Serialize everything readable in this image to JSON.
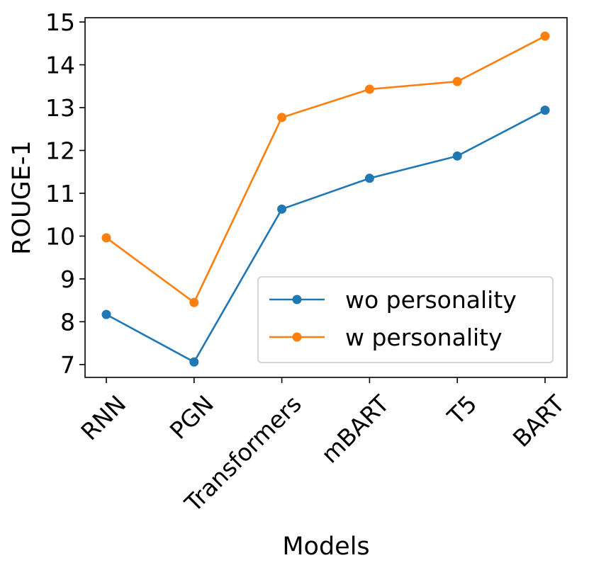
{
  "chart_data": {
    "type": "line",
    "title": "",
    "xlabel": "Models",
    "ylabel": "ROUGE-1",
    "categories": [
      "RNN",
      "PGN",
      "Transformers",
      "mBART",
      "T5",
      "BART"
    ],
    "ylim": [
      6.7,
      15.1
    ],
    "yticks": [
      7,
      8,
      9,
      10,
      11,
      12,
      13,
      14,
      15
    ],
    "grid": false,
    "legend_position": "lower-right",
    "series": [
      {
        "name": "wo personality",
        "color": "#1f77b4",
        "values": [
          8.17,
          7.06,
          10.63,
          11.35,
          11.87,
          12.94
        ]
      },
      {
        "name": "w personality",
        "color": "#ff7f0e",
        "values": [
          9.96,
          8.45,
          12.77,
          13.43,
          13.61,
          14.67
        ]
      }
    ]
  }
}
